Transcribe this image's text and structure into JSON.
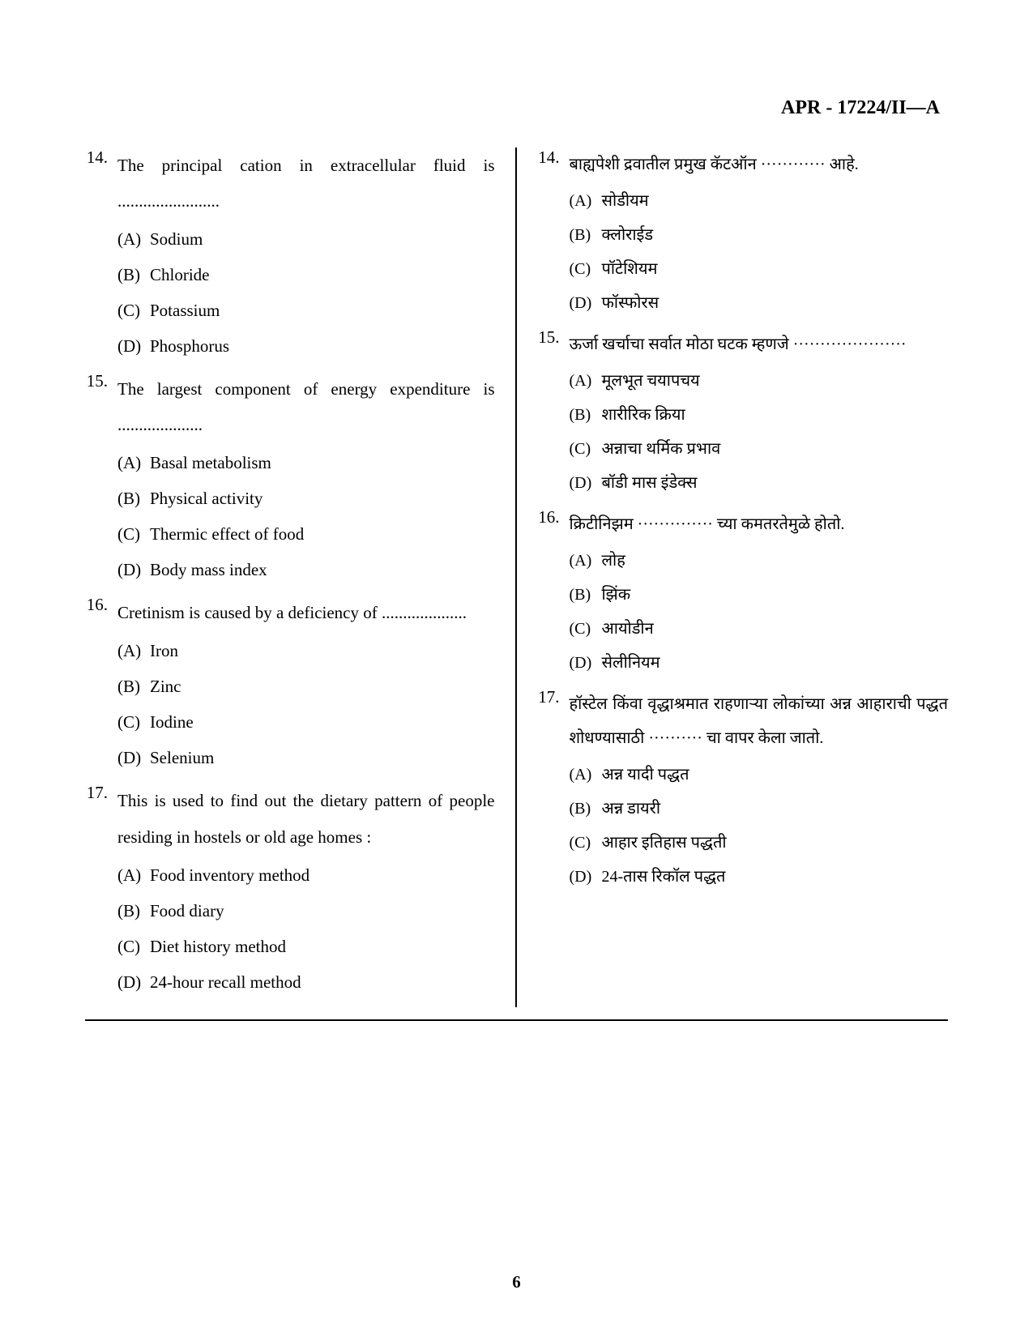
{
  "header": "APR - 17224/II—A",
  "page_number": "6",
  "left": {
    "questions": [
      {
        "num": "14.",
        "text": "The principal cation in extracellular fluid is ........................",
        "options": [
          {
            "label": "(A)",
            "text": "Sodium"
          },
          {
            "label": "(B)",
            "text": "Chloride"
          },
          {
            "label": "(C)",
            "text": "Potassium"
          },
          {
            "label": "(D)",
            "text": "Phosphorus"
          }
        ]
      },
      {
        "num": "15.",
        "text": "The largest component of energy expenditure is ....................",
        "options": [
          {
            "label": "(A)",
            "text": "Basal metabolism"
          },
          {
            "label": "(B)",
            "text": "Physical activity"
          },
          {
            "label": "(C)",
            "text": "Thermic effect of food"
          },
          {
            "label": "(D)",
            "text": "Body mass index"
          }
        ]
      },
      {
        "num": "16.",
        "text": "Cretinism is caused by a deficiency of ....................",
        "options": [
          {
            "label": "(A)",
            "text": "Iron"
          },
          {
            "label": "(B)",
            "text": "Zinc"
          },
          {
            "label": "(C)",
            "text": "Iodine"
          },
          {
            "label": "(D)",
            "text": "Selenium"
          }
        ]
      },
      {
        "num": "17.",
        "text": "This is used to find out the dietary pattern of people residing in hostels or old age homes :",
        "options": [
          {
            "label": "(A)",
            "text": "Food inventory method"
          },
          {
            "label": "(B)",
            "text": "Food diary"
          },
          {
            "label": "(C)",
            "text": "Diet history method"
          },
          {
            "label": "(D)",
            "text": "24-hour recall method"
          }
        ]
      }
    ]
  },
  "right": {
    "questions": [
      {
        "num": "14.",
        "text": "बाह्यपेशी द्रवातील प्रमुख कॅटऑन ············ आहे.",
        "options": [
          {
            "label": "(A)",
            "text": "सोडीयम"
          },
          {
            "label": "(B)",
            "text": "क्लोराईड"
          },
          {
            "label": "(C)",
            "text": "पॉटेशियम"
          },
          {
            "label": "(D)",
            "text": "फॉस्फोरस"
          }
        ]
      },
      {
        "num": "15.",
        "text": "ऊर्जा खर्चाचा सर्वात मोठा घटक म्हणजे ·····················",
        "options": [
          {
            "label": "(A)",
            "text": "मूलभूत चयापचय"
          },
          {
            "label": "(B)",
            "text": "शारीरिक क्रिया"
          },
          {
            "label": "(C)",
            "text": "अन्नाचा थर्मिक प्रभाव"
          },
          {
            "label": "(D)",
            "text": "बॉडी मास इंडेक्स"
          }
        ]
      },
      {
        "num": "16.",
        "text": "क्रिटीनिझम ·············· च्या कमतरतेमुळे होतो.",
        "options": [
          {
            "label": "(A)",
            "text": "लोह"
          },
          {
            "label": "(B)",
            "text": "झिंक"
          },
          {
            "label": "(C)",
            "text": "आयोडीन"
          },
          {
            "label": "(D)",
            "text": "सेलीनियम"
          }
        ]
      },
      {
        "num": "17.",
        "text": "हॉस्टेल किंवा वृद्धाश्रमात राहणाऱ्या लोकांच्या अन्न आहाराची पद्धत शोधण्यासाठी ·········· चा वापर केला जातो.",
        "options": [
          {
            "label": "(A)",
            "text": "अन्न यादी पद्धत"
          },
          {
            "label": "(B)",
            "text": "अन्न डायरी"
          },
          {
            "label": "(C)",
            "text": "आहार इतिहास पद्धती"
          },
          {
            "label": "(D)",
            "text": "24-तास रिकॉल पद्धत"
          }
        ]
      }
    ]
  }
}
